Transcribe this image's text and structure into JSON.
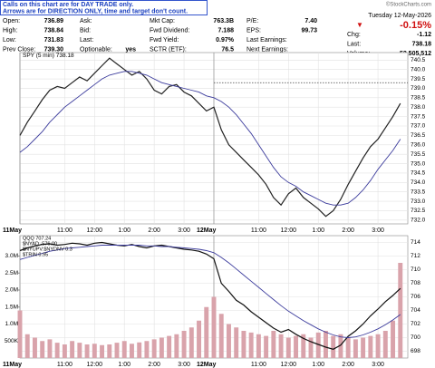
{
  "notes": [
    "Calls on this chart are for DAY TRADE only.",
    "Arrows are for DIRECTION ONLY, time and target don't count."
  ],
  "watermark": "©StockCharts.com",
  "quote": {
    "columns": [
      [
        [
          "Open:",
          "736.89"
        ],
        [
          "High:",
          "738.84"
        ],
        [
          "Low:",
          "731.83"
        ],
        [
          "Prev Close:",
          "739.30"
        ]
      ],
      [
        [
          "Ask:",
          ""
        ],
        [
          "Bid:",
          ""
        ],
        [
          "Last:",
          ""
        ],
        [
          "Optionable:",
          "yes"
        ]
      ],
      [
        [
          "Mkt Cap:",
          "763.3B"
        ],
        [
          "Fwd Dividend:",
          "7.188"
        ],
        [
          "Fwd Yield:",
          "0.97%"
        ],
        [
          "SCTR (ETF):",
          "76.5"
        ]
      ],
      [
        [
          "P/E:",
          "7.40"
        ],
        [
          "EPS:",
          "99.73"
        ],
        [
          "Last Earnings:",
          ""
        ],
        [
          "Next Earnings:",
          ""
        ]
      ]
    ],
    "date": "Tuesday 12-May-2026",
    "change_pct": "-0.15%",
    "summary": [
      [
        "Chg:",
        "-1.12"
      ],
      [
        "Last:",
        "738.18"
      ],
      [
        "Volume:",
        "52,505,512"
      ]
    ]
  },
  "chart_data": [
    {
      "type": "line",
      "legend": "SPY (5 min) 738.18",
      "x": [
        0,
        1,
        2,
        3,
        4,
        5,
        6,
        7,
        8,
        9,
        10,
        11,
        12,
        13,
        14,
        15,
        16,
        17,
        18,
        19,
        20,
        21,
        22,
        23,
        24,
        25,
        26,
        27,
        28,
        29,
        30,
        31,
        32,
        33,
        34,
        35,
        36,
        37,
        38,
        39,
        40,
        41,
        42,
        43,
        44,
        45,
        46,
        47,
        48,
        49,
        50,
        51
      ],
      "series": [
        {
          "name": "SPY",
          "color": "#222222",
          "values": [
            736.5,
            737.2,
            737.8,
            738.4,
            738.9,
            739.1,
            739.0,
            739.3,
            739.6,
            739.4,
            739.8,
            740.2,
            740.6,
            740.3,
            740.0,
            739.7,
            739.9,
            739.5,
            738.9,
            738.7,
            739.1,
            739.2,
            738.8,
            738.6,
            738.2,
            737.8,
            738.0,
            736.8,
            736.0,
            735.6,
            735.2,
            734.8,
            734.4,
            733.9,
            733.2,
            732.8,
            733.4,
            733.7,
            733.2,
            732.9,
            732.6,
            732.2,
            732.5,
            733.1,
            733.9,
            734.6,
            735.3,
            735.9,
            736.3,
            736.9,
            737.5,
            738.2
          ]
        },
        {
          "name": "MA",
          "color": "#3b3b9c",
          "values": [
            735.6,
            735.9,
            736.3,
            736.7,
            737.2,
            737.6,
            738.0,
            738.3,
            738.6,
            738.9,
            739.2,
            739.5,
            739.7,
            739.8,
            739.9,
            739.9,
            739.8,
            739.7,
            739.5,
            739.3,
            739.2,
            739.1,
            739.0,
            738.9,
            738.8,
            738.6,
            738.5,
            738.3,
            738.0,
            737.6,
            737.1,
            736.6,
            736.0,
            735.4,
            734.8,
            734.3,
            734.0,
            733.8,
            733.5,
            733.3,
            733.1,
            732.9,
            732.8,
            732.8,
            732.9,
            733.2,
            733.6,
            734.1,
            734.7,
            735.2,
            735.7,
            736.3
          ]
        }
      ],
      "xlim": [
        0,
        52
      ],
      "ylim": [
        731.8,
        740.9
      ],
      "xticks": [
        {
          "value": 0,
          "label": "11May"
        },
        {
          "value": 6,
          "label": "11:00"
        },
        {
          "value": 10,
          "label": "12:00"
        },
        {
          "value": 14,
          "label": "1:00"
        },
        {
          "value": 18,
          "label": "2:00"
        },
        {
          "value": 22,
          "label": "3:00"
        },
        {
          "value": 26,
          "label": "12May"
        },
        {
          "value": 32,
          "label": "11:00"
        },
        {
          "value": 36,
          "label": "12:00"
        },
        {
          "value": 40,
          "label": "1:00"
        },
        {
          "value": 44,
          "label": "2:00"
        },
        {
          "value": 48,
          "label": "3:00"
        }
      ],
      "yticks": [
        {
          "value": 732,
          "label": "732.0"
        },
        732.5,
        {
          "value": 733,
          "label": "733.0"
        },
        733.5,
        {
          "value": 734,
          "label": "734.0"
        },
        734.5,
        {
          "value": 735,
          "label": "735.0"
        },
        735.5,
        {
          "value": 736,
          "label": "736.0"
        },
        736.5,
        {
          "value": 737,
          "label": "737.0"
        },
        737.5,
        {
          "value": 738,
          "label": "738.0"
        },
        738.5,
        {
          "value": 739,
          "label": "739.0"
        },
        739.5,
        {
          "value": 740,
          "label": "740.0"
        },
        740.5
      ],
      "grid": true
    },
    {
      "type": "line",
      "legends": [
        "QQQ 707.24",
        "$NYAD -576.00",
        "$NYUPV:$NYDNV 0.3",
        "$TRIN 0.95"
      ],
      "x": [
        0,
        1,
        2,
        3,
        4,
        5,
        6,
        7,
        8,
        9,
        10,
        11,
        12,
        13,
        14,
        15,
        16,
        17,
        18,
        19,
        20,
        21,
        22,
        23,
        24,
        25,
        26,
        27,
        28,
        29,
        30,
        31,
        32,
        33,
        34,
        35,
        36,
        37,
        38,
        39,
        40,
        41,
        42,
        43,
        44,
        45,
        46,
        47,
        48,
        49,
        50,
        51
      ],
      "series": [
        {
          "name": "QQQ",
          "color": "#111111",
          "values": [
            712.8,
            713.2,
            713.5,
            713.7,
            713.8,
            713.6,
            713.7,
            713.9,
            713.8,
            713.6,
            713.9,
            714.0,
            713.8,
            713.6,
            713.5,
            713.7,
            713.4,
            713.2,
            713.5,
            713.6,
            713.4,
            713.2,
            713.0,
            712.9,
            712.7,
            712.3,
            711.6,
            708.0,
            706.8,
            705.5,
            704.8,
            703.8,
            703.0,
            702.2,
            701.4,
            700.8,
            701.2,
            700.5,
            699.9,
            699.4,
            699.0,
            698.6,
            698.3,
            698.9,
            700.2,
            701.0,
            702.0,
            703.2,
            704.2,
            705.3,
            706.2,
            707.24
          ]
        },
        {
          "name": "MA",
          "color": "#3b3b9c",
          "values": [
            711.5,
            711.8,
            712.1,
            712.4,
            712.7,
            712.9,
            713.1,
            713.2,
            713.3,
            713.4,
            713.5,
            713.6,
            713.6,
            713.6,
            713.6,
            713.6,
            713.6,
            713.5,
            713.5,
            713.4,
            713.4,
            713.3,
            713.2,
            713.1,
            713.0,
            712.8,
            712.5,
            711.8,
            711.0,
            710.1,
            709.2,
            708.3,
            707.4,
            706.5,
            705.6,
            704.7,
            703.9,
            703.2,
            702.5,
            701.9,
            701.3,
            700.8,
            700.4,
            700.1,
            700.0,
            700.1,
            700.4,
            700.8,
            701.3,
            701.9,
            702.6,
            703.4
          ]
        },
        {
          "name": "Volume",
          "color": "#d9a3ab",
          "axis": "y2",
          "values": [
            1400000,
            700000,
            600000,
            500000,
            550000,
            450000,
            400000,
            500000,
            450000,
            400000,
            420000,
            380000,
            400000,
            450000,
            500000,
            420000,
            460000,
            500000,
            550000,
            600000,
            650000,
            700000,
            800000,
            900000,
            1100000,
            1500000,
            1800000,
            1300000,
            1000000,
            900000,
            800000,
            750000,
            700000,
            650000,
            800000,
            700000,
            600000,
            650000,
            700000,
            600000,
            750000,
            800000,
            650000,
            700000,
            600000,
            550000,
            600000,
            650000,
            700000,
            800000,
            1100000,
            2800000
          ]
        }
      ],
      "xlim": [
        0,
        52
      ],
      "ylim": [
        697,
        715
      ],
      "yticks": [
        698,
        700,
        702,
        704,
        706,
        708,
        710,
        712,
        714
      ],
      "y2lim": [
        0,
        3600000
      ],
      "y2ticks": [
        {
          "value": 500000,
          "label": "500K"
        },
        {
          "value": 1000000,
          "label": "1.0M"
        },
        {
          "value": 1500000,
          "label": "1.5M"
        },
        {
          "value": 2000000,
          "label": "2.0M"
        },
        {
          "value": 2500000,
          "label": "2.5M"
        },
        {
          "value": 3000000,
          "label": "3.0M"
        }
      ],
      "xticks": [
        {
          "value": 0,
          "label": "11May"
        },
        {
          "value": 6,
          "label": "11:00"
        },
        {
          "value": 10,
          "label": "12:00"
        },
        {
          "value": 14,
          "label": "1:00"
        },
        {
          "value": 18,
          "label": "2:00"
        },
        {
          "value": 22,
          "label": "3:00"
        },
        {
          "value": 26,
          "label": "12May"
        },
        {
          "value": 32,
          "label": "11:00"
        },
        {
          "value": 36,
          "label": "12:00"
        },
        {
          "value": 40,
          "label": "1:00"
        },
        {
          "value": 44,
          "label": "2:00"
        },
        {
          "value": 48,
          "label": "3:00"
        }
      ],
      "grid": true
    }
  ]
}
